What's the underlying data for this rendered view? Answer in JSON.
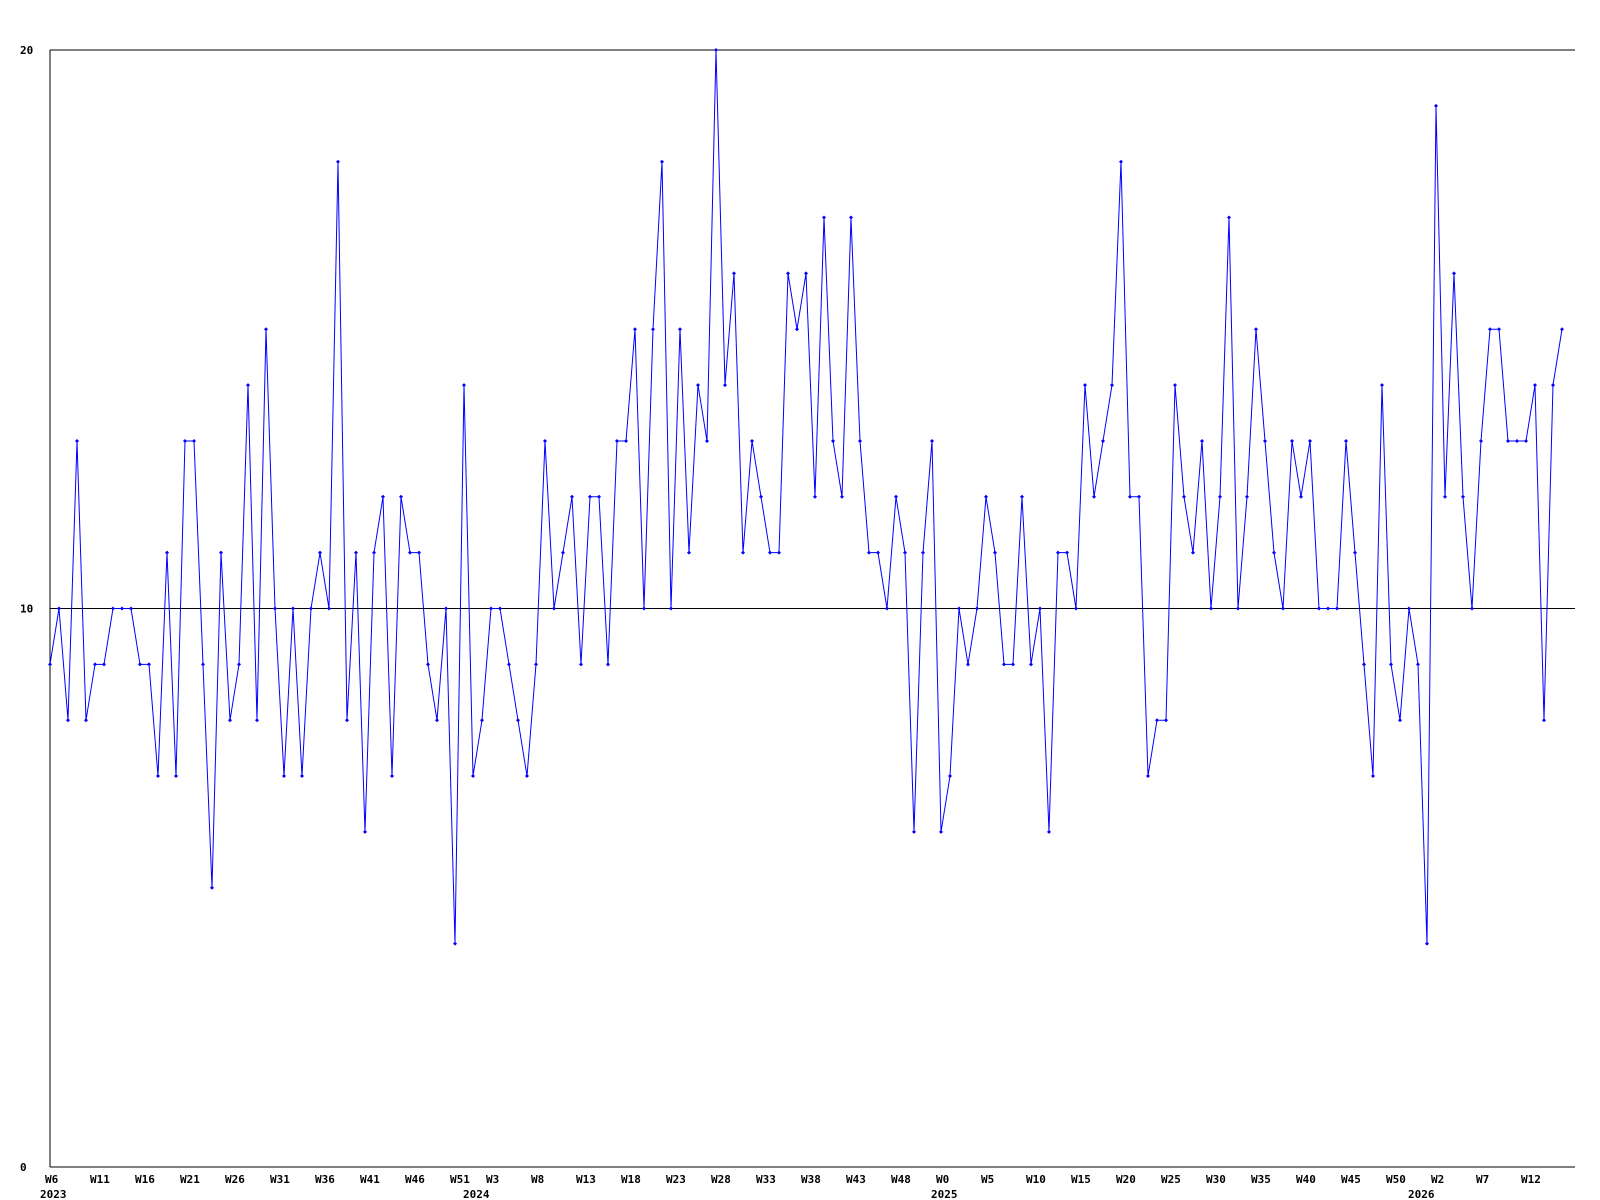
{
  "chart_data": {
    "type": "line",
    "title": "",
    "xlabel": "",
    "ylabel": "",
    "ylim": [
      0,
      20
    ],
    "y_ticks": [
      0,
      10,
      20
    ],
    "grid": "horizontal lines at 10 and 20",
    "colors": {
      "series": "#0000ff",
      "axes": "#000000"
    },
    "x_tick_labels": [
      {
        "index": 0,
        "label": "W6"
      },
      {
        "index": 5,
        "label": "W11"
      },
      {
        "index": 10,
        "label": "W16"
      },
      {
        "index": 15,
        "label": "W21"
      },
      {
        "index": 20,
        "label": "W26"
      },
      {
        "index": 25,
        "label": "W31"
      },
      {
        "index": 30,
        "label": "W36"
      },
      {
        "index": 35,
        "label": "W41"
      },
      {
        "index": 40,
        "label": "W46"
      },
      {
        "index": 45,
        "label": "W51"
      },
      {
        "index": 49,
        "label": "W3"
      },
      {
        "index": 54,
        "label": "W8"
      },
      {
        "index": 59,
        "label": "W13"
      },
      {
        "index": 64,
        "label": "W18"
      },
      {
        "index": 69,
        "label": "W23"
      },
      {
        "index": 74,
        "label": "W28"
      },
      {
        "index": 79,
        "label": "W33"
      },
      {
        "index": 84,
        "label": "W38"
      },
      {
        "index": 89,
        "label": "W43"
      },
      {
        "index": 94,
        "label": "W48"
      },
      {
        "index": 99,
        "label": "W0"
      },
      {
        "index": 104,
        "label": "W5"
      },
      {
        "index": 109,
        "label": "W10"
      },
      {
        "index": 114,
        "label": "W15"
      },
      {
        "index": 119,
        "label": "W20"
      },
      {
        "index": 124,
        "label": "W25"
      },
      {
        "index": 129,
        "label": "W30"
      },
      {
        "index": 134,
        "label": "W35"
      },
      {
        "index": 139,
        "label": "W40"
      },
      {
        "index": 144,
        "label": "W45"
      },
      {
        "index": 149,
        "label": "W50"
      },
      {
        "index": 154,
        "label": "W2"
      },
      {
        "index": 159,
        "label": "W7"
      },
      {
        "index": 164,
        "label": "W12"
      }
    ],
    "year_labels": [
      {
        "index": 0,
        "label": "2023"
      },
      {
        "index": 47,
        "label": "2024"
      },
      {
        "index": 99,
        "label": "2025"
      },
      {
        "index": 152,
        "label": "2026"
      }
    ],
    "series": [
      {
        "values": [
          9,
          10,
          8,
          13,
          8,
          9,
          9,
          10,
          10,
          10,
          9,
          9,
          7,
          11,
          7,
          13,
          13,
          9,
          5,
          11,
          8,
          9,
          14,
          8,
          15,
          10,
          7,
          10,
          7,
          10,
          11,
          10,
          18,
          8,
          11,
          6,
          11,
          12,
          7,
          12,
          11,
          11,
          9,
          8,
          10,
          4,
          14,
          7,
          8,
          10,
          10,
          9,
          8,
          7,
          9,
          13,
          10,
          11,
          12,
          9,
          12,
          12,
          9,
          13,
          13,
          15,
          10,
          15,
          18,
          10,
          15,
          11,
          14,
          13,
          20,
          14,
          16,
          11,
          13,
          12,
          11,
          11,
          16,
          15,
          16,
          12,
          17,
          13,
          12,
          17,
          13,
          11,
          11,
          10,
          12,
          11,
          6,
          11,
          13,
          6,
          7,
          10,
          9,
          10,
          12,
          11,
          9,
          9,
          12,
          9,
          10,
          6,
          11,
          11,
          10,
          14,
          12,
          13,
          14,
          18,
          12,
          12,
          7,
          8,
          8,
          14,
          12,
          11,
          13,
          10,
          12,
          17,
          10,
          12,
          15,
          13,
          11,
          10,
          13,
          12,
          13,
          10,
          10,
          10,
          13,
          11,
          9,
          7,
          14,
          9,
          8,
          10,
          9,
          4,
          19,
          12,
          16,
          12,
          10,
          13,
          15,
          15,
          13,
          13,
          13,
          14,
          8,
          14,
          15
        ]
      }
    ]
  }
}
